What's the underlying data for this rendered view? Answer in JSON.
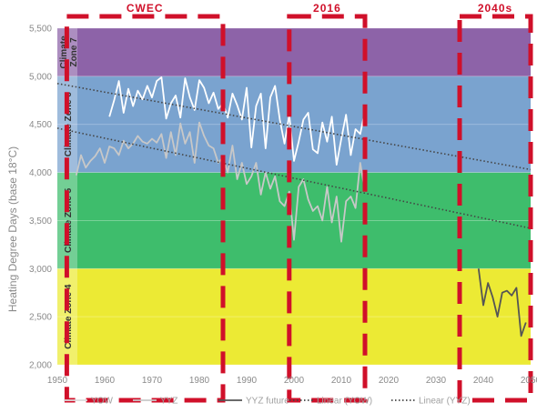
{
  "chart_data": {
    "type": "line",
    "title": "",
    "xlabel": "",
    "ylabel": "Heating Degree Days (base 18°C)",
    "xlim": [
      1950,
      2050
    ],
    "ylim": [
      2000,
      5500
    ],
    "x_ticks": [
      "1950",
      "1960",
      "1970",
      "1980",
      "1990",
      "2000",
      "2010",
      "2020",
      "2030",
      "2040",
      "2050"
    ],
    "y_ticks": [
      "2,000",
      "2,500",
      "3,000",
      "3,500",
      "4,000",
      "4,500",
      "5,000",
      "5,500"
    ],
    "grid": true,
    "legend_position": "bottom",
    "climate_zones": [
      {
        "label": "Climate Zone 4",
        "from": 2000,
        "to": 3000,
        "color": "#ecea34"
      },
      {
        "label": "Climate Zone 5",
        "from": 3000,
        "to": 4000,
        "color": "#3ebd6c"
      },
      {
        "label": "Climate Zone 6",
        "from": 4000,
        "to": 5000,
        "color": "#7aa3cf"
      },
      {
        "label": "Climate Zone 7",
        "from": 5000,
        "to": 5500,
        "color": "#8d63a8"
      }
    ],
    "periods": [
      {
        "label": "CWEC",
        "from": 1952,
        "to": 1985
      },
      {
        "label": "2016",
        "from": 1999,
        "to": 2015
      },
      {
        "label": "2040s",
        "from": 2035,
        "to": 2050
      }
    ],
    "series": [
      {
        "name": "YOW",
        "color": "#ffffff",
        "style": "solid",
        "x": [
          1961,
          1962,
          1963,
          1964,
          1965,
          1966,
          1967,
          1968,
          1969,
          1970,
          1971,
          1972,
          1973,
          1974,
          1975,
          1976,
          1977,
          1978,
          1979,
          1980,
          1981,
          1982,
          1983,
          1984,
          1985,
          1986,
          1987,
          1988,
          1989,
          1990,
          1991,
          1992,
          1993,
          1994,
          1995,
          1996,
          1997,
          1998,
          1999,
          2000,
          2001,
          2002,
          2003,
          2004,
          2005,
          2006,
          2007,
          2008,
          2009,
          2010,
          2011,
          2012,
          2013,
          2014,
          2015
        ],
        "values": [
          4580,
          4750,
          4950,
          4620,
          4870,
          4690,
          4850,
          4760,
          4900,
          4780,
          4950,
          4990,
          4560,
          4720,
          4800,
          4570,
          4980,
          4780,
          4650,
          4960,
          4880,
          4720,
          4830,
          4660,
          4720,
          4570,
          4820,
          4700,
          4550,
          4880,
          4260,
          4690,
          4820,
          4250,
          4780,
          4900,
          4550,
          4300,
          4600,
          4120,
          4320,
          4550,
          4620,
          4240,
          4200,
          4520,
          4320,
          4580,
          4080,
          4350,
          4600,
          4180,
          4450,
          4400,
          4640
        ]
      },
      {
        "name": "YYZ",
        "color": "#c8c8c8",
        "style": "solid",
        "x": [
          1954,
          1955,
          1956,
          1957,
          1958,
          1959,
          1960,
          1961,
          1962,
          1963,
          1964,
          1965,
          1966,
          1967,
          1968,
          1969,
          1970,
          1971,
          1972,
          1973,
          1974,
          1975,
          1976,
          1977,
          1978,
          1979,
          1980,
          1981,
          1982,
          1983,
          1984,
          1985,
          1986,
          1987,
          1988,
          1989,
          1990,
          1991,
          1992,
          1993,
          1994,
          1995,
          1996,
          1997,
          1998,
          1999,
          2000,
          2001,
          2002,
          2003,
          2004,
          2005,
          2006,
          2007,
          2008,
          2009,
          2010,
          2011,
          2012,
          2013,
          2014,
          2015
        ],
        "values": [
          3970,
          4180,
          4050,
          4120,
          4170,
          4250,
          4100,
          4270,
          4250,
          4180,
          4330,
          4250,
          4300,
          4380,
          4320,
          4300,
          4350,
          4310,
          4400,
          4150,
          4420,
          4180,
          4510,
          4300,
          4420,
          4100,
          4520,
          4380,
          4280,
          4250,
          4100,
          4160,
          4000,
          4280,
          3930,
          4100,
          3880,
          3960,
          4100,
          3770,
          4000,
          3830,
          3960,
          3700,
          3650,
          3800,
          3300,
          3850,
          3930,
          3720,
          3600,
          3650,
          3500,
          3850,
          3480,
          3750,
          3280,
          3700,
          3750,
          3630,
          4100,
          3800
        ]
      },
      {
        "name": "YYZ future",
        "color": "#555555",
        "style": "solid",
        "x": [
          2039,
          2040,
          2041,
          2042,
          2043,
          2044,
          2045,
          2046,
          2047,
          2048,
          2049
        ],
        "values": [
          3000,
          2620,
          2850,
          2700,
          2500,
          2750,
          2770,
          2720,
          2800,
          2300,
          2440
        ]
      },
      {
        "name": "Linear (YOW)",
        "color": "#444444",
        "style": "dotted",
        "x": [
          1950,
          2050
        ],
        "values": [
          4925,
          4030
        ]
      },
      {
        "name": "Linear (YYZ)",
        "color": "#444444",
        "style": "dotted",
        "x": [
          1950,
          2050
        ],
        "values": [
          4460,
          3420
        ]
      }
    ]
  }
}
